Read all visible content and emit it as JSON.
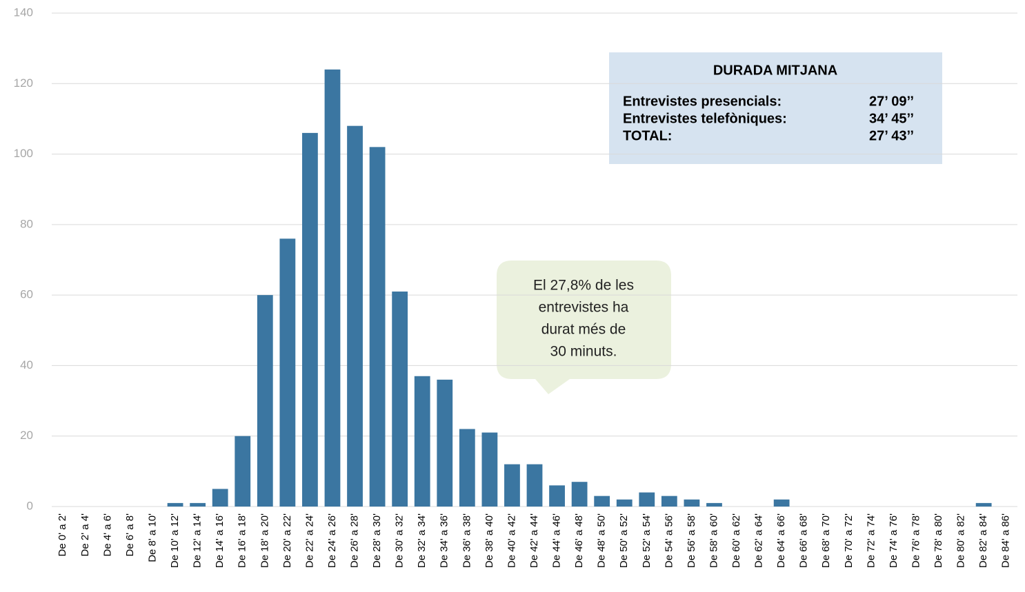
{
  "chart_data": {
    "type": "bar",
    "categories": [
      "De 0' a 2'",
      "De 2' a 4'",
      "De 4' a 6'",
      "De 6' a 8'",
      "De 8' a 10'",
      "De 10' a 12'",
      "De 12' a 14'",
      "De 14' a 16'",
      "De 16' a 18'",
      "De 18' a 20'",
      "De 20' a 22'",
      "De 22' a 24'",
      "De 24' a 26'",
      "De 26' a 28'",
      "De 28' a 30'",
      "De 30' a 32'",
      "De 32' a 34'",
      "De 34' a 36'",
      "De 36' a 38'",
      "De 38' a 40'",
      "De 40' a 42'",
      "De 42' a 44'",
      "De 44' a 46'",
      "De 46' a 48'",
      "De 48' a 50'",
      "De 50' a 52'",
      "De 52' a 54'",
      "De 54' a 56'",
      "De 56' a 58'",
      "De 58' a 60'",
      "De 60' a 62'",
      "De 62' a 64'",
      "De 64' a 66'",
      "De 66' a 68'",
      "De 68' a 70'",
      "De 70' a 72'",
      "De 72' a 74'",
      "De 74' a 76'",
      "De 76' a 78'",
      "De 78' a 80'",
      "De 80' a 82'",
      "De 82' a 84'",
      "De 84' a 86'"
    ],
    "values": [
      0,
      0,
      0,
      0,
      0,
      1,
      1,
      5,
      20,
      60,
      76,
      106,
      124,
      108,
      102,
      61,
      37,
      36,
      22,
      21,
      12,
      12,
      6,
      7,
      3,
      2,
      4,
      3,
      2,
      1,
      0,
      0,
      2,
      0,
      0,
      0,
      0,
      0,
      0,
      0,
      0,
      1,
      0
    ],
    "color": "#3b76a1",
    "ylim": [
      0,
      140
    ],
    "yticks": [
      0,
      20,
      40,
      60,
      80,
      100,
      120,
      140
    ],
    "grid": true,
    "info_box": {
      "title": "DURADA MITJANA",
      "rows": [
        [
          "Entrevistes presencials:",
          "27’ 09’’"
        ],
        [
          "Entrevistes telefòniques:",
          "34’ 45’’"
        ],
        [
          "TOTAL:",
          "27’ 43’’"
        ]
      ]
    },
    "callout": [
      "El 27,8% de les",
      "entrevistes ha",
      "durat més de",
      "30 minuts."
    ]
  }
}
